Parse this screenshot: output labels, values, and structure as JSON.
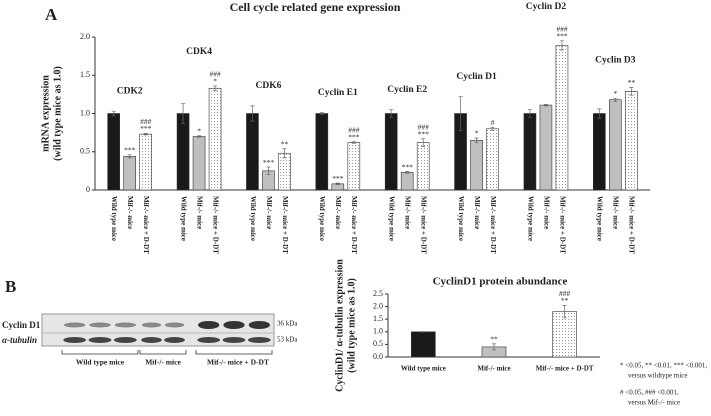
{
  "panel_a": "A",
  "panel_b": "B",
  "chart_data": [
    {
      "type": "bar",
      "title": "Cell cycle related gene expression",
      "y_label": [
        "mRNA expression",
        "(wild type mice as 1.0)"
      ],
      "groups": [
        "CDK2",
        "CDK4",
        "CDK6",
        "Cyclin E1",
        "Cyclin E2",
        "Cyclin D1",
        "Cyclin D2",
        "Cyclin D3"
      ],
      "series": [
        {
          "name": "Wild type mice",
          "color": "#1a1a1a",
          "values": [
            1.0,
            1.0,
            1.0,
            1.0,
            1.0,
            1.0,
            1.0,
            1.0
          ],
          "errors": [
            0.03,
            0.13,
            0.1,
            0.01,
            0.05,
            0.22,
            0.05,
            0.06
          ],
          "annotations": [
            null,
            null,
            null,
            null,
            null,
            null,
            null,
            null
          ]
        },
        {
          "name": "Mif-/- mice",
          "color": "#bfbfbf",
          "values": [
            0.44,
            0.7,
            0.25,
            0.08,
            0.23,
            0.65,
            1.11,
            1.18
          ],
          "errors": [
            0.02,
            0.01,
            0.05,
            0.01,
            0.01,
            0.03,
            0.01,
            0.02
          ],
          "annotations": [
            [
              "***"
            ],
            [
              "*"
            ],
            [
              "***"
            ],
            [
              "***"
            ],
            [
              "***"
            ],
            [
              "*"
            ],
            null,
            [
              "*"
            ]
          ]
        },
        {
          "name": "Mif-/- mice + D-DT",
          "color": "#ffffff",
          "hatch": "dots",
          "values": [
            0.73,
            1.33,
            0.48,
            0.62,
            0.62,
            0.8,
            1.89,
            1.29
          ],
          "errors": [
            0.01,
            0.03,
            0.06,
            0.01,
            0.05,
            0.02,
            0.06,
            0.05
          ],
          "annotations": [
            [
              "###",
              "***"
            ],
            [
              "###",
              "*"
            ],
            [
              "**"
            ],
            [
              "###",
              "***"
            ],
            [
              "###",
              "***"
            ],
            [
              "#"
            ],
            [
              "###",
              "***"
            ],
            [
              "**"
            ]
          ]
        }
      ],
      "ylim": [
        0,
        2
      ],
      "yticks": [
        0,
        0.5,
        {
          "value": 1,
          "label": "1.0"
        },
        1.5,
        {
          "value": 2,
          "label": "2.0"
        }
      ]
    },
    {
      "type": "bar",
      "title": "CyclinD1 protein abundance",
      "y_label": [
        "CyclinD1/ α-tubulin expression",
        "(wild type mice as 1.0)"
      ],
      "categories": [
        "Wild type mice",
        "Mif-/- mice",
        "Mif-/- mice + D-DT"
      ],
      "values": [
        1.0,
        0.4,
        1.8
      ],
      "errors": [
        0.01,
        0.12,
        0.25
      ],
      "colors": [
        "#1a1a1a",
        "#bfbfbf",
        "#ffffff"
      ],
      "hatch": [
        null,
        null,
        "dots"
      ],
      "annotations": [
        null,
        [
          "**"
        ],
        [
          "###",
          "**"
        ]
      ],
      "ylim": [
        0,
        2.5
      ],
      "yticks": [
        {
          "value": 0,
          "label": "0.0"
        },
        0.5,
        {
          "value": 1,
          "label": "1.0"
        },
        1.5,
        {
          "value": 2,
          "label": "2.0"
        },
        {
          "value": 2.5,
          "label": "2.5"
        }
      ]
    }
  ],
  "blot": {
    "rows": [
      {
        "label": "Cyclin D1",
        "size": "36 kDa"
      },
      {
        "label": "α-tubulin",
        "size": "53 kDa"
      }
    ],
    "groups": [
      "Wild type mice",
      "Mif-/- mice",
      "Mif-/- mice + D-DT"
    ]
  },
  "notes": [
    "* <0.05, ** <0.01, *** <0.001,",
    "versus wildtype mice",
    "# <0.05, ### <0.001,",
    "versus Mif-/- mice"
  ]
}
